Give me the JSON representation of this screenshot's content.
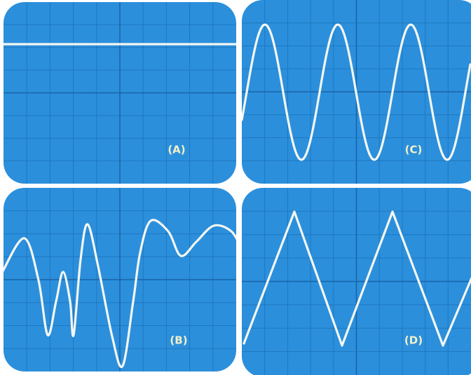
{
  "panels": [
    {
      "label": "(A)"
    },
    {
      "label": "(C)"
    },
    {
      "label": "(B)"
    },
    {
      "label": "(D)"
    }
  ]
}
